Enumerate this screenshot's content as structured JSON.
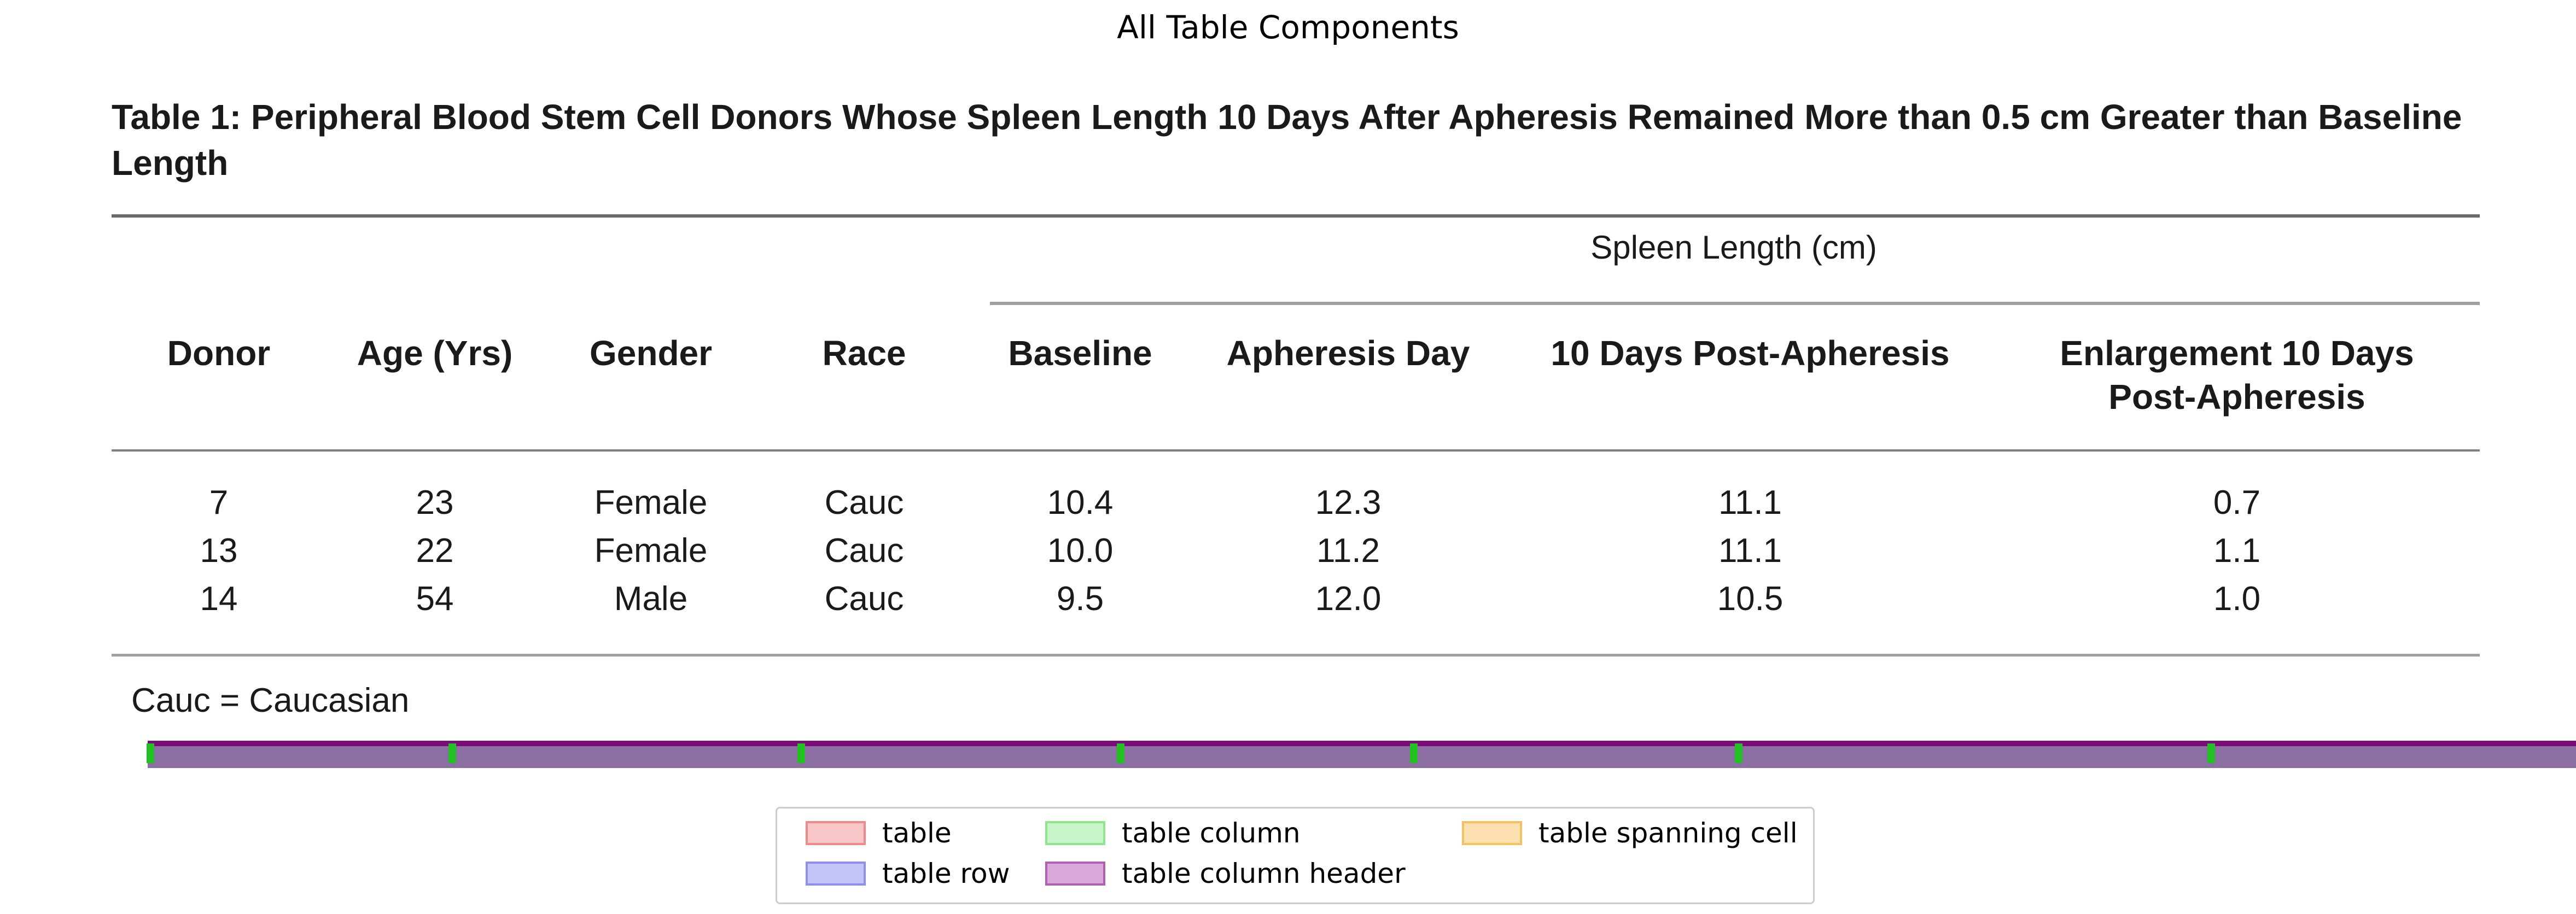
{
  "figure_title": "All Table Components",
  "table": {
    "caption": "Table 1: Peripheral Blood Stem Cell Donors Whose Spleen Length 10 Days After Apheresis Remained More than 0.5 cm Greater than Baseline Length",
    "spanning_header": "Spleen Length (cm)",
    "headers": [
      "Donor",
      "Age (Yrs)",
      "Gender",
      "Race",
      "Baseline",
      "Apheresis Day",
      "10 Days Post-Apheresis",
      "Enlargement 10 Days Post-Apheresis"
    ],
    "rows": [
      [
        "7",
        "23",
        "Female",
        "Cauc",
        "10.4",
        "12.3",
        "11.1",
        "0.7"
      ],
      [
        "13",
        "22",
        "Female",
        "Cauc",
        "10.0",
        "11.2",
        "11.1",
        "1.1"
      ],
      [
        "14",
        "54",
        "Male",
        "Cauc",
        "9.5",
        "12.0",
        "10.5",
        "1.0"
      ]
    ],
    "footnote": "Cauc = Caucasian"
  },
  "legend": {
    "items": [
      {
        "label": "table",
        "fill": "#f7c6c6",
        "border": "#f08a8a"
      },
      {
        "label": "table column",
        "fill": "#c8f5c8",
        "border": "#8fe68f"
      },
      {
        "label": "table spanning cell",
        "fill": "#fde0b0",
        "border": "#f5c060"
      },
      {
        "label": "table row",
        "fill": "#c4c4f7",
        "border": "#8e8ef0"
      },
      {
        "label": "table column header",
        "fill": "#d9a7d9",
        "border": "#b060b0"
      }
    ]
  },
  "colors": {
    "overlay_band": "#8b6fa3",
    "overlay_top": "#7b0a7b",
    "column_marks": "#22c022"
  }
}
